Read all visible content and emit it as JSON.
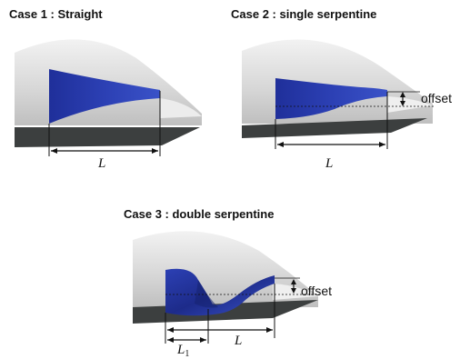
{
  "cases": [
    {
      "title": "Case 1 : Straight",
      "length_label": "L"
    },
    {
      "title": "Case 2 : single serpentine",
      "length_label": "L",
      "offset_label": "offset"
    },
    {
      "title": "Case 3 : double serpentine",
      "length_label": "L",
      "l1_label": "L",
      "l1_subscript": "1",
      "offset_label": "offset"
    }
  ],
  "colors": {
    "duct": "#2a3ca8",
    "duct_dark": "#1b2780",
    "fuselage_light": "#e4e4e4",
    "fuselage_mid": "#c8c8c8",
    "fuselage_dark": "#3a3d3d",
    "line": "#111111"
  }
}
